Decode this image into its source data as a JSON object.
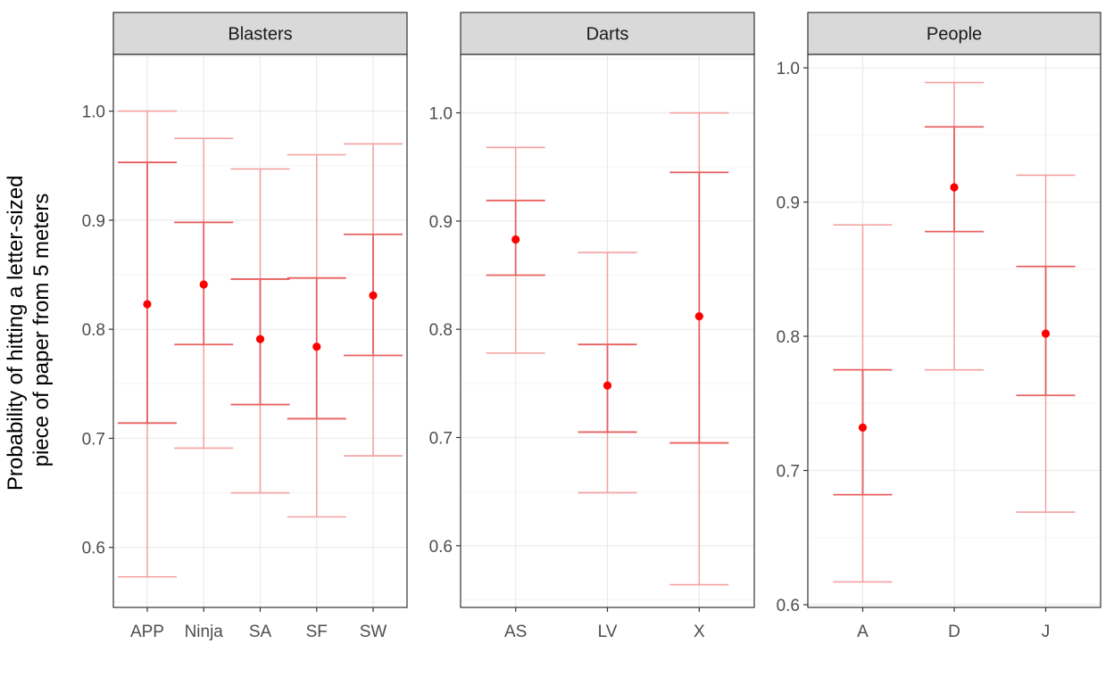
{
  "chart_data": {
    "type": "errorbar",
    "ylabel": [
      "Probability of hitting a letter-sized",
      "piece of paper from 5 meters"
    ],
    "colors": {
      "point": "#ff0000",
      "inner": "#e86060",
      "outer": "#f4a0a0",
      "strip": "#d9d9d9",
      "grid_major": "#ebebeb",
      "grid_minor": "#f5f5f5",
      "border": "#333333"
    },
    "panels": [
      {
        "strip": "Blasters",
        "ylim": [
          0.545,
          1.052
        ],
        "yticks": [
          0.6,
          0.7,
          0.8,
          0.9,
          1.0
        ],
        "ytick_labels": [
          "0.6",
          "0.7",
          "0.8",
          "0.9",
          "1.0"
        ],
        "categories": [
          "APP",
          "Ninja",
          "SA",
          "SF",
          "SW"
        ],
        "points": [
          0.823,
          0.841,
          0.791,
          0.784,
          0.831
        ],
        "inner_low": [
          0.714,
          0.786,
          0.731,
          0.718,
          0.776
        ],
        "inner_high": [
          0.953,
          0.898,
          0.846,
          0.847,
          0.887
        ],
        "outer_low": [
          0.573,
          0.691,
          0.65,
          0.628,
          0.684
        ],
        "outer_high": [
          1.0,
          0.975,
          0.947,
          0.96,
          0.97
        ]
      },
      {
        "strip": "Darts",
        "ylim": [
          0.543,
          1.054
        ],
        "yticks": [
          0.6,
          0.7,
          0.8,
          0.9,
          1.0
        ],
        "ytick_labels": [
          "0.6",
          "0.7",
          "0.8",
          "0.9",
          "1.0"
        ],
        "categories": [
          "AS",
          "LV",
          "X"
        ],
        "points": [
          0.883,
          0.748,
          0.812
        ],
        "inner_low": [
          0.85,
          0.705,
          0.695
        ],
        "inner_high": [
          0.919,
          0.786,
          0.945
        ],
        "outer_low": [
          0.778,
          0.649,
          0.564
        ],
        "outer_high": [
          0.968,
          0.871,
          1.0
        ]
      },
      {
        "strip": "People",
        "ylim": [
          0.598,
          1.01
        ],
        "yticks": [
          0.6,
          0.7,
          0.8,
          0.9,
          1.0
        ],
        "ytick_labels": [
          "0.6",
          "0.7",
          "0.8",
          "0.9",
          "1.0"
        ],
        "categories": [
          "A",
          "D",
          "J"
        ],
        "points": [
          0.732,
          0.911,
          0.802
        ],
        "inner_low": [
          0.682,
          0.878,
          0.756
        ],
        "inner_high": [
          0.775,
          0.956,
          0.852
        ],
        "outer_low": [
          0.617,
          0.775,
          0.669
        ],
        "outer_high": [
          0.883,
          0.989,
          0.92
        ]
      }
    ]
  }
}
